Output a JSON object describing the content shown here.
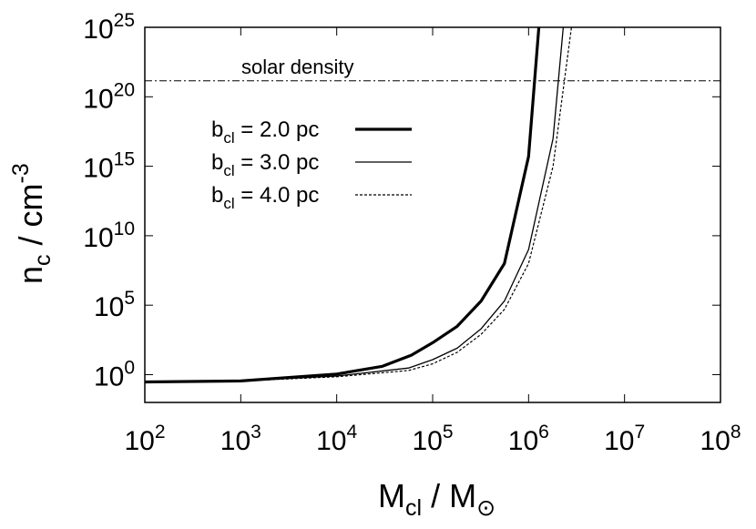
{
  "chart_data": {
    "type": "line",
    "x_scale": "log",
    "y_scale": "log",
    "xlim": [
      100,
      100000000
    ],
    "ylim": [
      0.01,
      1e+25
    ],
    "xlabel": {
      "main": "M",
      "sub": "cl",
      "mid": " / M",
      "sub2": "⊙"
    },
    "ylabel": {
      "main": "n",
      "sub": "c",
      "mid": " / cm",
      "sup": "-3"
    },
    "x_ticks": [
      {
        "value": 100,
        "base": "10",
        "exp": "2"
      },
      {
        "value": 1000,
        "base": "10",
        "exp": "3"
      },
      {
        "value": 10000,
        "base": "10",
        "exp": "4"
      },
      {
        "value": 100000,
        "base": "10",
        "exp": "5"
      },
      {
        "value": 1000000,
        "base": "10",
        "exp": "6"
      },
      {
        "value": 10000000,
        "base": "10",
        "exp": "7"
      },
      {
        "value": 100000000,
        "base": "10",
        "exp": "8"
      }
    ],
    "y_ticks": [
      {
        "value": 1,
        "base": "10",
        "exp": "0"
      },
      {
        "value": 100000,
        "base": "10",
        "exp": "5"
      },
      {
        "value": 10000000000.0,
        "base": "10",
        "exp": "10"
      },
      {
        "value": 1000000000000000.0,
        "base": "10",
        "exp": "15"
      },
      {
        "value": 1e+20,
        "base": "10",
        "exp": "20"
      },
      {
        "value": 1e+25,
        "base": "10",
        "exp": "25"
      }
    ],
    "reference_line": {
      "label": "solar density",
      "y": 1.4e+21,
      "style": "dash-dot"
    },
    "series": [
      {
        "name": "b_cl = 2.0 pc",
        "label_main": "b",
        "label_sub": "cl",
        "label_rest": " = 2.0 pc",
        "style": "thick",
        "x": [
          100,
          1000,
          10000,
          30000,
          60000,
          100000,
          180000,
          320000,
          560000,
          1000000,
          1280000
        ],
        "y": [
          0.3,
          0.35,
          1.1,
          4,
          25,
          200,
          3000,
          200000,
          100000000.0,
          5000000000000000.0,
          1e+25
        ]
      },
      {
        "name": "b_cl = 3.0 pc",
        "label_main": "b",
        "label_sub": "cl",
        "label_rest": " = 3.0 pc",
        "style": "thin",
        "x": [
          100,
          1000,
          10000,
          56000,
          100000,
          180000,
          320000,
          560000,
          1000000,
          1800000,
          2300000
        ],
        "y": [
          0.3,
          0.35,
          0.8,
          3,
          12,
          80,
          2000,
          200000,
          1000000000.0,
          1e+17,
          1e+25
        ]
      },
      {
        "name": "b_cl = 4.0 pc",
        "label_main": "b",
        "label_sub": "cl",
        "label_rest": " = 4.0 pc",
        "style": "dashed",
        "x": [
          100,
          1000,
          10000,
          56000,
          100000,
          180000,
          320000,
          560000,
          1000000,
          1800000,
          2800000
        ],
        "y": [
          0.3,
          0.35,
          0.7,
          2,
          6,
          40,
          800,
          50000,
          100000000.0,
          1000000000000000.0,
          1e+25
        ]
      }
    ]
  }
}
